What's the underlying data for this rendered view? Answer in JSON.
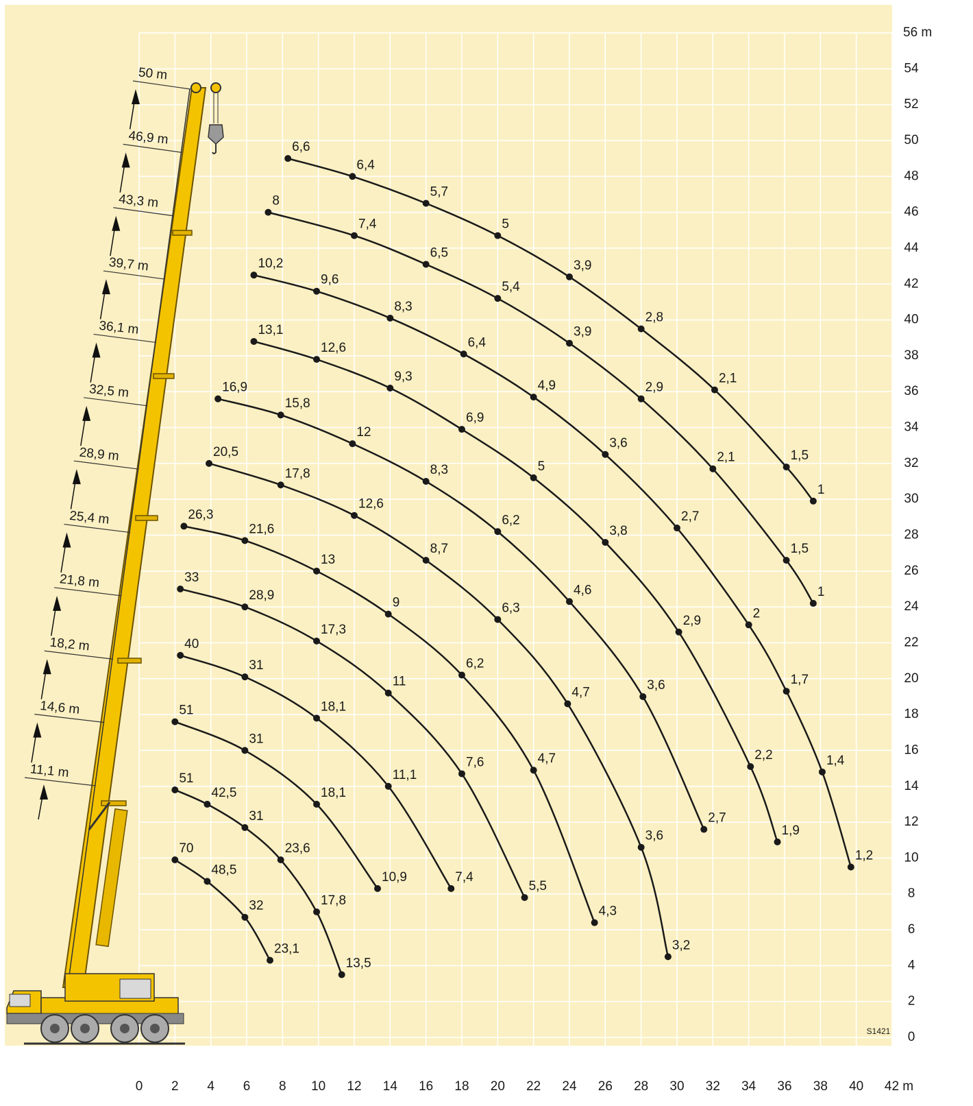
{
  "chart_data": {
    "type": "line",
    "figure_id": "S1421",
    "background": "#fbf0c3",
    "grid": true,
    "grid_color": "#ffffff",
    "color": "#1a1a1a",
    "boom_lengths": [
      "50 m",
      "46,9 m",
      "43,3 m",
      "39,7 m",
      "36,1 m",
      "32,5 m",
      "28,9 m",
      "25,4 m",
      "21,8 m",
      "18,2 m",
      "14,6 m",
      "11,1 m"
    ],
    "xlim": [
      0,
      42
    ],
    "ylim": [
      0,
      56
    ],
    "xticks": [
      0,
      2,
      4,
      6,
      8,
      10,
      12,
      14,
      16,
      18,
      20,
      22,
      24,
      26,
      28,
      30,
      32,
      34,
      36,
      38,
      40,
      {
        "value": 42,
        "label": "42 m"
      }
    ],
    "yticks": [
      0,
      2,
      4,
      6,
      8,
      10,
      12,
      14,
      16,
      18,
      20,
      22,
      24,
      26,
      28,
      30,
      32,
      34,
      36,
      38,
      40,
      42,
      44,
      46,
      48,
      50,
      52,
      54,
      {
        "value": 56,
        "label": "56 m"
      }
    ],
    "series": [
      {
        "x": [
          8.3,
          11.9,
          16.0,
          20.0,
          24.0,
          28.0,
          32.1,
          36.1,
          37.6
        ],
        "y": [
          49.0,
          48.0,
          46.5,
          44.7,
          42.4,
          39.5,
          36.1,
          31.8,
          29.9
        ],
        "values": [
          6.6,
          6.4,
          5.7,
          5,
          3.9,
          2.8,
          2.1,
          1.5,
          1
        ],
        "value_labels": [
          "6,6",
          "6,4",
          "5,7",
          "5",
          "3,9",
          "2,8",
          "2,1",
          "1,5",
          "1"
        ]
      },
      {
        "x": [
          7.2,
          12.0,
          16.0,
          20.0,
          24.0,
          28.0,
          32.0,
          36.1,
          37.6
        ],
        "y": [
          46.0,
          44.7,
          43.1,
          41.2,
          38.7,
          35.6,
          31.7,
          26.6,
          24.2
        ],
        "values": [
          8,
          7.4,
          6.5,
          5.4,
          3.9,
          2.9,
          2.1,
          1.5,
          1
        ],
        "value_labels": [
          "8",
          "7,4",
          "6,5",
          "5,4",
          "3,9",
          "2,9",
          "2,1",
          "1,5",
          "1"
        ]
      },
      {
        "x": [
          6.4,
          9.9,
          14.0,
          18.1,
          22.0,
          26.0,
          30.0,
          34.0,
          36.1,
          38.1,
          39.7
        ],
        "y": [
          42.5,
          41.6,
          40.1,
          38.1,
          35.7,
          32.5,
          28.4,
          23.0,
          19.3,
          14.8,
          9.5
        ],
        "values": [
          10.2,
          9.6,
          8.3,
          6.4,
          4.9,
          3.6,
          2.7,
          2,
          1.7,
          1.4,
          1.2
        ],
        "value_labels": [
          "10,2",
          "9,6",
          "8,3",
          "6,4",
          "4,9",
          "3,6",
          "2,7",
          "2",
          "1,7",
          "1,4",
          "1,2"
        ]
      },
      {
        "x": [
          6.4,
          9.9,
          14.0,
          18.0,
          22.0,
          26.0,
          30.1,
          34.1,
          35.6
        ],
        "y": [
          38.8,
          37.8,
          36.2,
          33.9,
          31.2,
          27.6,
          22.6,
          15.1,
          10.9
        ],
        "values": [
          13.1,
          12.6,
          9.3,
          6.9,
          5,
          3.8,
          2.9,
          2.2,
          1.9
        ],
        "value_labels": [
          "13,1",
          "12,6",
          "9,3",
          "6,9",
          "5",
          "3,8",
          "2,9",
          "2,2",
          "1,9"
        ]
      },
      {
        "x": [
          4.4,
          7.9,
          11.9,
          16.0,
          20.0,
          24.0,
          28.1,
          31.5
        ],
        "y": [
          35.6,
          34.7,
          33.1,
          31.0,
          28.2,
          24.3,
          19.0,
          11.6
        ],
        "values": [
          16.9,
          15.8,
          12,
          8.3,
          6.2,
          4.6,
          3.6,
          2.7
        ],
        "value_labels": [
          "16,9",
          "15,8",
          "12",
          "8,3",
          "6,2",
          "4,6",
          "3,6",
          "2,7"
        ]
      },
      {
        "x": [
          3.9,
          7.9,
          12.0,
          16.0,
          20.0,
          23.9,
          28.0,
          29.5
        ],
        "y": [
          32.0,
          30.8,
          29.1,
          26.6,
          23.3,
          18.6,
          10.6,
          4.5
        ],
        "values": [
          20.5,
          17.8,
          12.6,
          8.7,
          6.3,
          4.7,
          3.6,
          3.2
        ],
        "value_labels": [
          "20,5",
          "17,8",
          "12,6",
          "8,7",
          "6,3",
          "4,7",
          "3,6",
          "3,2"
        ]
      },
      {
        "x": [
          2.5,
          5.9,
          9.9,
          13.9,
          18.0,
          22.0,
          25.4
        ],
        "y": [
          28.5,
          27.7,
          26.0,
          23.6,
          20.2,
          14.9,
          6.4
        ],
        "values": [
          26.3,
          21.6,
          13,
          9,
          6.2,
          4.7,
          4.3
        ],
        "value_labels": [
          "26,3",
          "21,6",
          "13",
          "9",
          "6,2",
          "4,7",
          "4,3"
        ]
      },
      {
        "x": [
          2.3,
          5.9,
          9.9,
          13.9,
          18.0,
          21.5
        ],
        "y": [
          25.0,
          24.0,
          22.1,
          19.2,
          14.7,
          7.8
        ],
        "values": [
          33,
          28.9,
          17.3,
          11,
          7.6,
          5.5
        ],
        "value_labels": [
          "33",
          "28,9",
          "17,3",
          "11",
          "7,6",
          "5,5"
        ]
      },
      {
        "x": [
          2.3,
          5.9,
          9.9,
          13.9,
          17.4
        ],
        "y": [
          21.3,
          20.1,
          17.8,
          14.0,
          8.3
        ],
        "values": [
          40,
          31,
          18.1,
          11.1,
          7.4
        ],
        "value_labels": [
          "40",
          "31",
          "18,1",
          "11,1",
          "7,4"
        ]
      },
      {
        "x": [
          2.0,
          5.9,
          9.9,
          13.3
        ],
        "y": [
          17.6,
          16.0,
          13.0,
          8.3
        ],
        "values": [
          51,
          31,
          18.1,
          10.9
        ],
        "value_labels": [
          "51",
          "31",
          "18,1",
          "10,9"
        ]
      },
      {
        "x": [
          2.0,
          3.8,
          5.9,
          7.9,
          9.9,
          11.3
        ],
        "y": [
          13.8,
          13.0,
          11.7,
          9.9,
          7.0,
          3.5
        ],
        "values": [
          51,
          42.5,
          31,
          23.6,
          17.8,
          13.5
        ],
        "value_labels": [
          "51",
          "42,5",
          "31",
          "23,6",
          "17,8",
          "13,5"
        ]
      },
      {
        "x": [
          2.0,
          3.8,
          5.9,
          7.3
        ],
        "y": [
          9.9,
          8.7,
          6.7,
          4.3
        ],
        "values": [
          70,
          48.5,
          32,
          23.1
        ],
        "value_labels": [
          "70",
          "48,5",
          "32",
          "23,1"
        ]
      }
    ]
  }
}
